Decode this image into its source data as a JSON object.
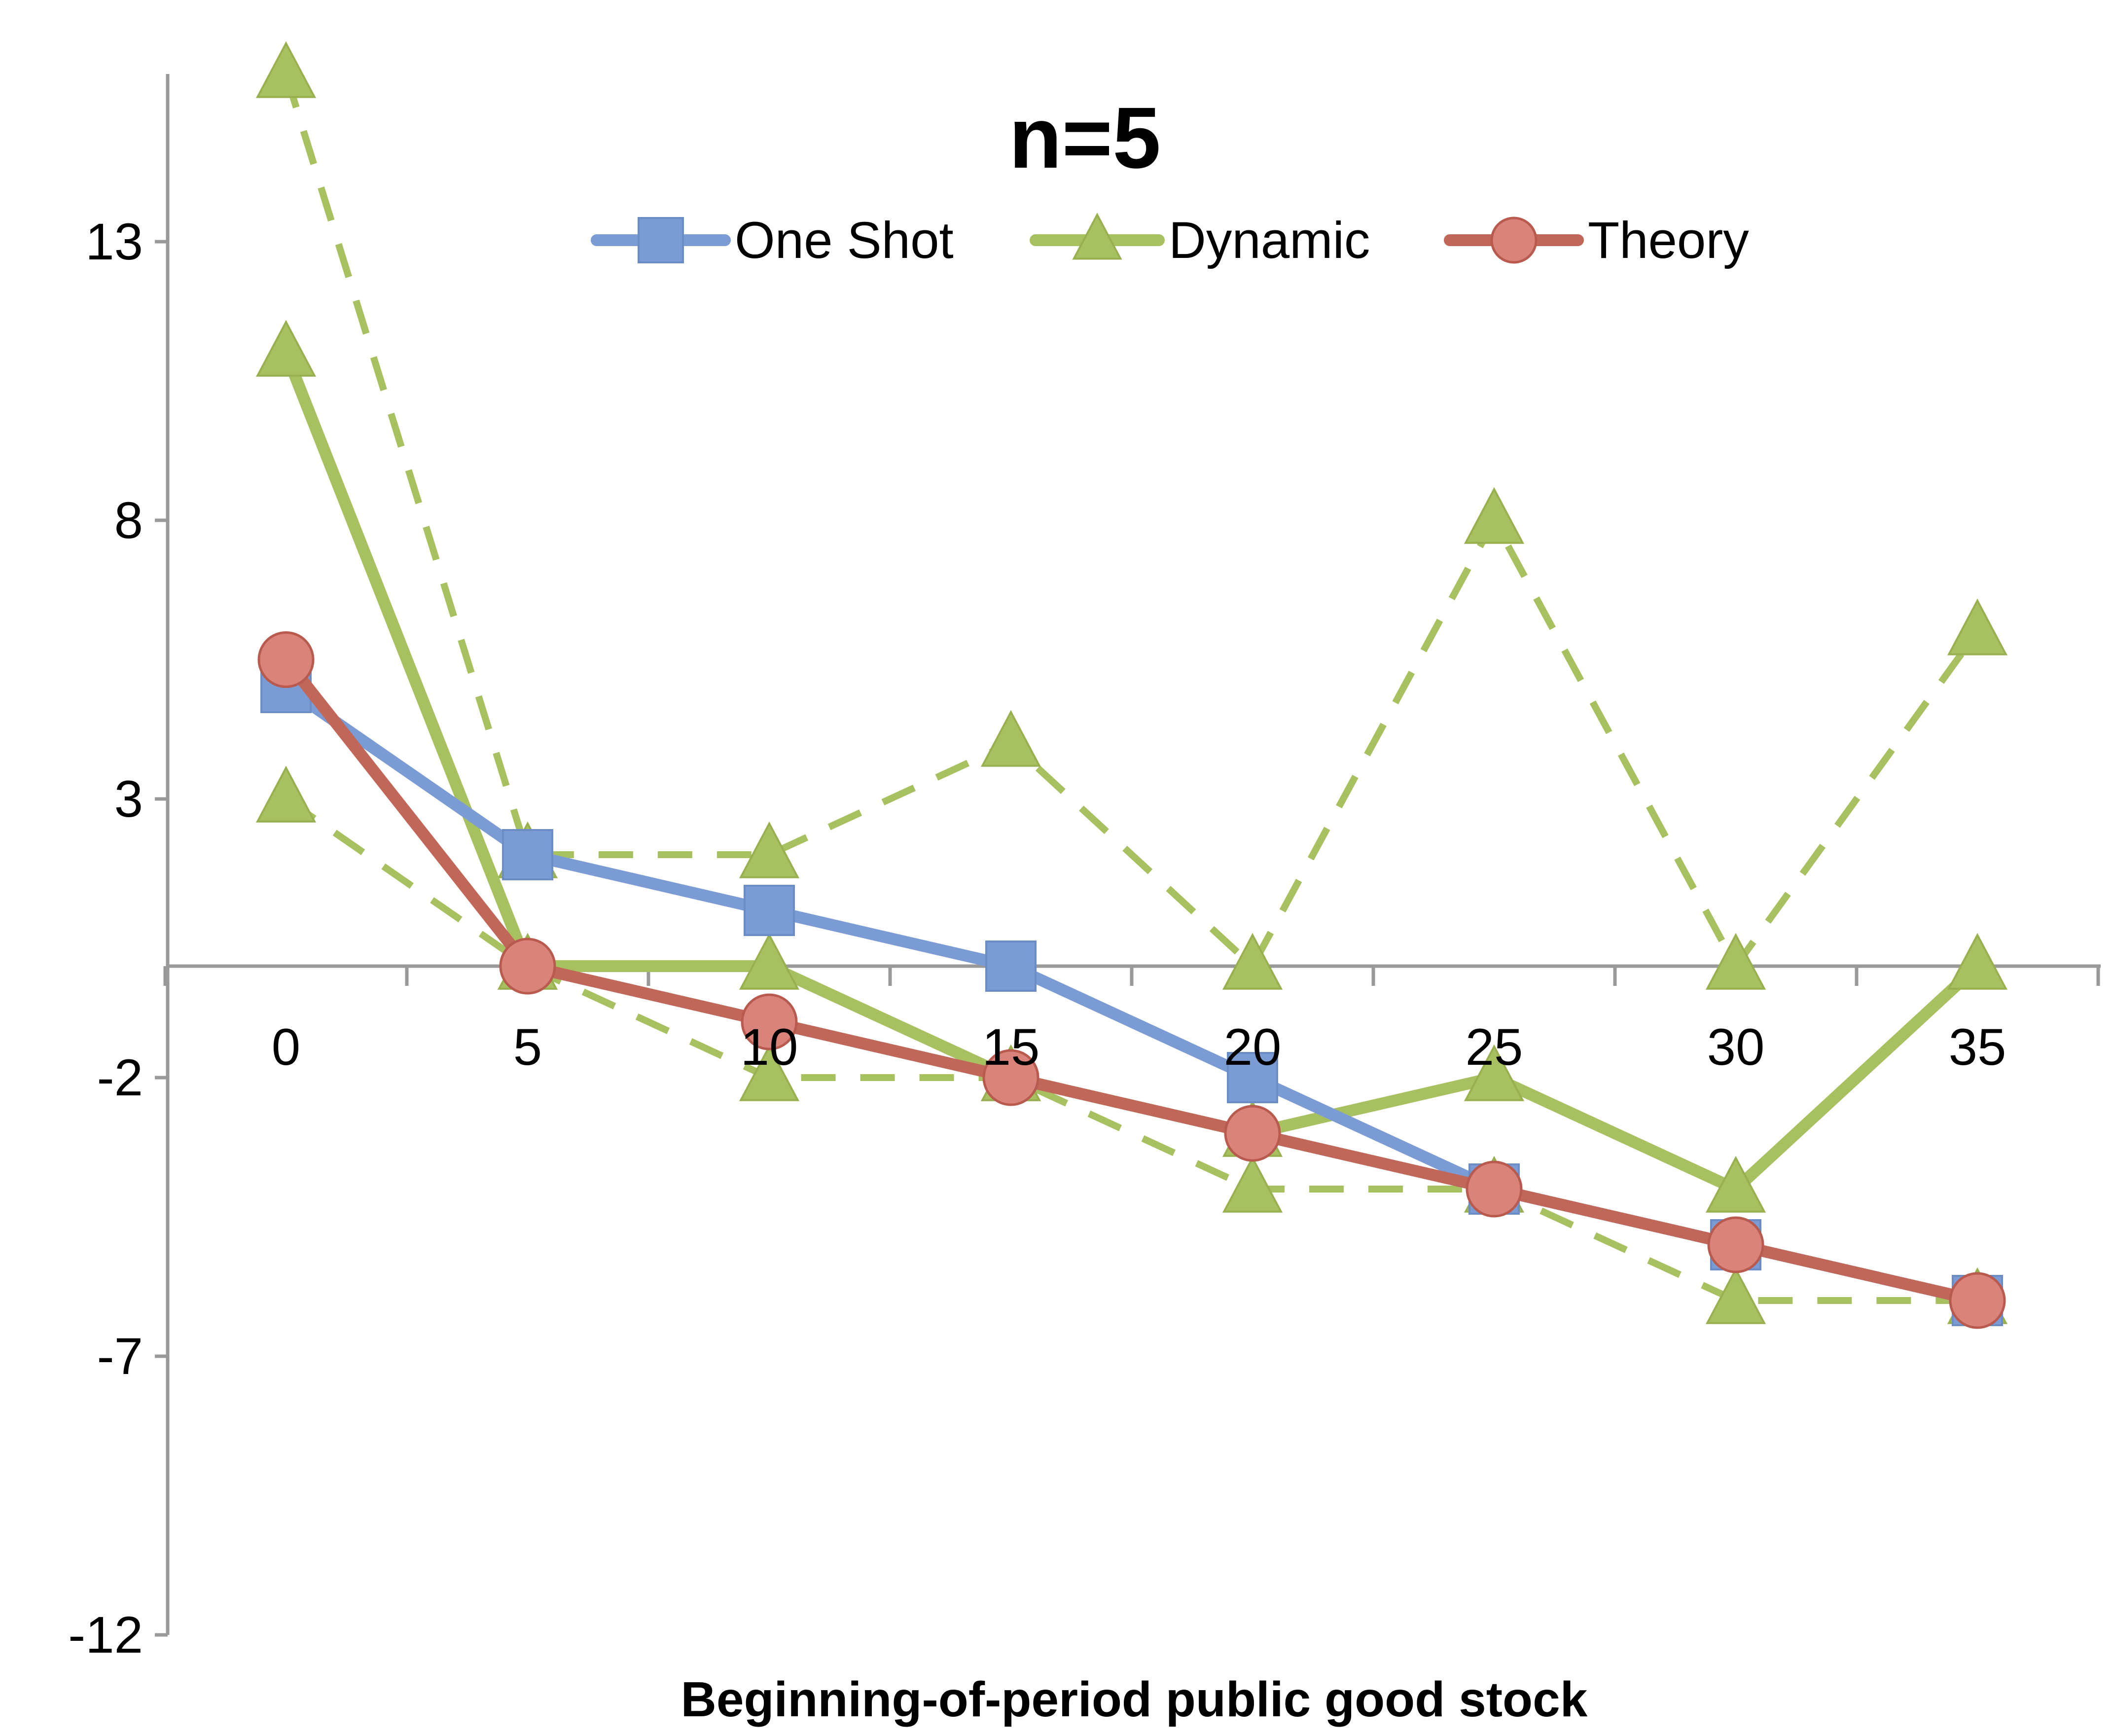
{
  "chart_data": {
    "type": "line",
    "title": "n=5",
    "xlabel": "Beginning-of-period public good stock",
    "ylabel": "",
    "categories": [
      "0",
      "5",
      "10",
      "15",
      "20",
      "25",
      "30",
      "35"
    ],
    "yticks": [
      "13",
      "8",
      "3",
      "-2",
      "-7",
      "-12"
    ],
    "ytick_values": [
      13,
      8,
      3,
      -2,
      -7,
      -12
    ],
    "ylim": [
      -12,
      16
    ],
    "grid": false,
    "legend_position": "top",
    "legend": [
      {
        "name": "One Shot",
        "color": "#7b9bd4",
        "marker": "square"
      },
      {
        "name": "Dynamic",
        "color": "#a8c160",
        "marker": "triangle"
      },
      {
        "name": "Theory",
        "color": "#c0675a",
        "marker": "circle"
      }
    ],
    "series": [
      {
        "name": "One Shot",
        "color": "#7b9bd4",
        "marker": "square",
        "dashed": false,
        "values": [
          5,
          2,
          1,
          0,
          -2,
          -4,
          -5,
          -6
        ]
      },
      {
        "name": "Dynamic",
        "color": "#a8c160",
        "marker": "triangle",
        "dashed": false,
        "values": [
          11,
          0,
          0,
          -2,
          -3,
          -2,
          -4,
          0
        ]
      },
      {
        "name": "",
        "color": "#a8c160",
        "marker": "triangle",
        "dashed": true,
        "values": [
          16,
          2,
          2,
          4,
          0,
          8,
          0,
          6
        ]
      },
      {
        "name": "",
        "color": "#a8c160",
        "marker": "triangle",
        "dashed": true,
        "values": [
          3,
          0,
          -2,
          -2,
          -4,
          -4,
          -6,
          -6
        ]
      },
      {
        "name": "Theory",
        "color": "#c0675a",
        "marker": "circle",
        "dashed": false,
        "values": [
          5.5,
          0,
          -1,
          -2,
          -3,
          -4,
          -5,
          -6
        ]
      }
    ]
  }
}
